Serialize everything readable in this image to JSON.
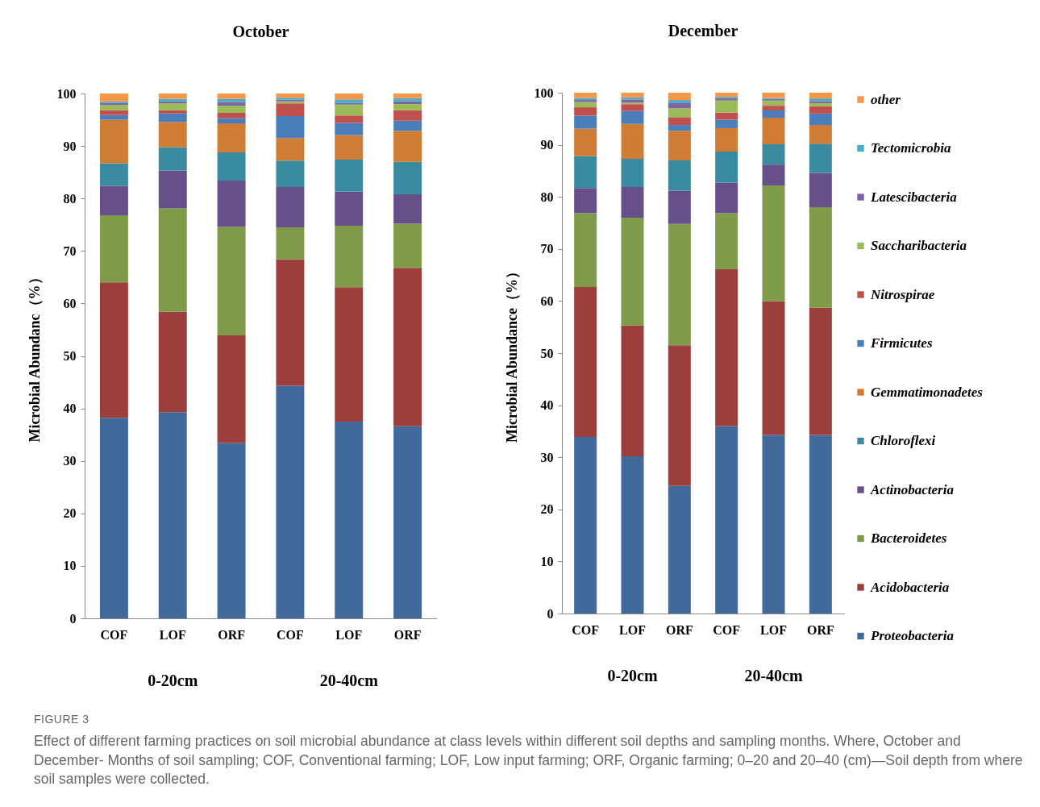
{
  "chart_data": [
    {
      "type": "bar",
      "title": "October",
      "ylabel": "Microbial Abundanc（%）",
      "stacked": true,
      "legend": false,
      "categories": [
        "COF",
        "LOF",
        "ORF",
        "COF",
        "LOF",
        "ORF"
      ],
      "ylim": [
        0,
        100
      ],
      "yticks": [
        0,
        10,
        20,
        30,
        40,
        50,
        60,
        70,
        80,
        90,
        100
      ],
      "annotations": [
        "0-20cm",
        "20-40cm"
      ],
      "series": [
        {
          "color": "#41699c",
          "values": [
            38.2,
            39.3,
            33.4,
            44.3,
            37.5,
            36.6
          ]
        },
        {
          "color": "#9c3f3c",
          "values": [
            25.8,
            19.1,
            20.5,
            24.1,
            25.6,
            30.2
          ]
        },
        {
          "color": "#7f9a48",
          "values": [
            12.8,
            19.7,
            20.7,
            6.1,
            11.7,
            8.4
          ]
        },
        {
          "color": "#67508a",
          "values": [
            5.6,
            7.2,
            8.8,
            7.7,
            6.5,
            5.6
          ]
        },
        {
          "color": "#3a8ba0",
          "values": [
            4.3,
            4.5,
            5.4,
            5.0,
            6.1,
            6.2
          ]
        },
        {
          "color": "#d07c35",
          "values": [
            8.3,
            4.8,
            5.5,
            4.3,
            4.7,
            5.9
          ]
        },
        {
          "color": "#4a7ebb",
          "values": [
            0.9,
            1.6,
            1.0,
            4.2,
            2.3,
            1.9
          ]
        },
        {
          "color": "#c0504d",
          "values": [
            0.9,
            0.6,
            1.0,
            2.4,
            1.4,
            2.0
          ]
        },
        {
          "color": "#9bbb59",
          "values": [
            1.0,
            1.3,
            1.4,
            0.4,
            2.1,
            1.2
          ]
        },
        {
          "color": "#8064a2",
          "values": [
            0.4,
            0.4,
            0.7,
            0.3,
            0.3,
            0.5
          ]
        },
        {
          "color": "#4bacc6",
          "values": [
            0.3,
            0.5,
            0.6,
            0.4,
            0.7,
            0.6
          ]
        },
        {
          "color": "#f79646",
          "values": [
            1.5,
            1.0,
            1.0,
            0.8,
            1.1,
            0.9
          ]
        }
      ]
    },
    {
      "type": "bar",
      "title": "December",
      "ylabel": "Microbial Abundance（%）",
      "stacked": true,
      "legend": "right",
      "categories": [
        "COF",
        "LOF",
        "ORF",
        "COF",
        "LOF",
        "ORF"
      ],
      "ylim": [
        0,
        100
      ],
      "yticks": [
        0,
        10,
        20,
        30,
        40,
        50,
        60,
        70,
        80,
        90,
        100
      ],
      "annotations": [
        "0-20cm",
        "20-40cm"
      ],
      "series": [
        {
          "name": "Proteobacteria",
          "color": "#41699c",
          "values": [
            33.9,
            30.2,
            24.5,
            36.0,
            34.3,
            34.3
          ]
        },
        {
          "name": "Acidobacteria",
          "color": "#9c3f3c",
          "values": [
            28.8,
            25.1,
            27.0,
            30.1,
            25.7,
            24.4
          ]
        },
        {
          "name": "Bacteroidetes",
          "color": "#7f9a48",
          "values": [
            14.2,
            20.7,
            23.3,
            10.8,
            22.2,
            19.3
          ]
        },
        {
          "name": "Actinobacteria",
          "color": "#67508a",
          "values": [
            4.8,
            5.9,
            6.4,
            5.8,
            4.0,
            6.6
          ]
        },
        {
          "name": "Chloroflexi",
          "color": "#3a8ba0",
          "values": [
            6.1,
            5.4,
            5.8,
            6.0,
            3.9,
            5.6
          ]
        },
        {
          "name": "Gemmatimonadetes",
          "color": "#d07c35",
          "values": [
            5.3,
            6.7,
            5.7,
            4.5,
            5.1,
            3.6
          ]
        },
        {
          "name": "Firmicutes",
          "color": "#4a7ebb",
          "values": [
            2.5,
            2.5,
            1.1,
            1.6,
            1.4,
            2.2
          ]
        },
        {
          "name": "Nitrospirae",
          "color": "#c0504d",
          "values": [
            1.6,
            1.3,
            1.5,
            1.4,
            0.9,
            1.4
          ]
        },
        {
          "name": "Saccharibacteria",
          "color": "#9bbb59",
          "values": [
            1.0,
            0.3,
            1.7,
            2.3,
            1.0,
            0.6
          ]
        },
        {
          "name": "Latescibacteria",
          "color": "#8064a2",
          "values": [
            0.4,
            0.6,
            1.0,
            0.4,
            0.3,
            0.4
          ]
        },
        {
          "name": "Tectomicrobia",
          "color": "#4bacc6",
          "values": [
            0.4,
            0.4,
            0.6,
            0.3,
            0.2,
            0.5
          ]
        },
        {
          "name": "other",
          "color": "#f79646",
          "values": [
            1.0,
            0.9,
            1.4,
            0.8,
            1.0,
            1.1
          ]
        }
      ]
    },
    {
      "type": "other",
      "title": "FIGURE 3",
      "annotations": [
        "Effect of different farming practices on soil microbial abundance at class levels within different soil depths and sampling months. Where, October and December- Months of soil sampling; COF, Conventional farming; LOF, Low input farming; ORF, Organic farming; 0–20 and 20–40 (cm)—Soil depth from where soil samples were collected."
      ]
    }
  ]
}
